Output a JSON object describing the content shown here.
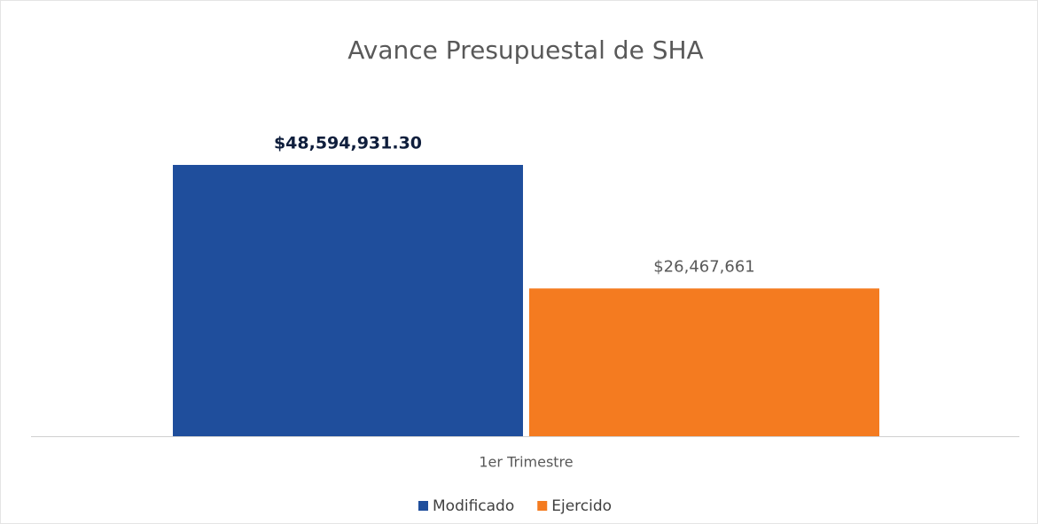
{
  "chart_data": {
    "type": "bar",
    "title": "Avance Presupuestal de SHA",
    "categories": [
      "1er Trimestre"
    ],
    "series": [
      {
        "name": "Modificado",
        "color": "#1f4e9c",
        "values": [
          48594931.3
        ],
        "value_labels": [
          "$48,594,931.30"
        ]
      },
      {
        "name": "Ejercido",
        "color": "#f47b20",
        "values": [
          26467661
        ],
        "value_labels": [
          "$26,467,661"
        ]
      }
    ],
    "legend": "bottom"
  }
}
